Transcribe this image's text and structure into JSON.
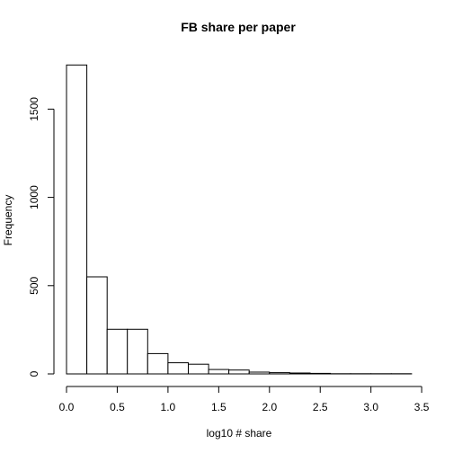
{
  "chart_data": {
    "type": "bar",
    "title": "FB share per paper",
    "xlabel": "log10 # share",
    "ylabel": "Frequency",
    "bin_width": 0.2,
    "bins": [
      {
        "start": 0.0,
        "end": 0.2,
        "count": 1750
      },
      {
        "start": 0.2,
        "end": 0.4,
        "count": 550
      },
      {
        "start": 0.4,
        "end": 0.6,
        "count": 253
      },
      {
        "start": 0.6,
        "end": 0.8,
        "count": 253
      },
      {
        "start": 0.8,
        "end": 1.0,
        "count": 115
      },
      {
        "start": 1.0,
        "end": 1.2,
        "count": 63
      },
      {
        "start": 1.2,
        "end": 1.4,
        "count": 55
      },
      {
        "start": 1.4,
        "end": 1.6,
        "count": 25
      },
      {
        "start": 1.6,
        "end": 1.8,
        "count": 22
      },
      {
        "start": 1.8,
        "end": 2.0,
        "count": 10
      },
      {
        "start": 2.0,
        "end": 2.2,
        "count": 7
      },
      {
        "start": 2.2,
        "end": 2.4,
        "count": 5
      },
      {
        "start": 2.4,
        "end": 2.6,
        "count": 3
      },
      {
        "start": 2.6,
        "end": 2.8,
        "count": 1
      },
      {
        "start": 2.8,
        "end": 3.0,
        "count": 1
      },
      {
        "start": 3.0,
        "end": 3.2,
        "count": 1
      },
      {
        "start": 3.2,
        "end": 3.4,
        "count": 1
      }
    ],
    "xlim": [
      0,
      3.4
    ],
    "ylim": [
      0,
      1750
    ],
    "xticks": [
      "0.0",
      "0.5",
      "1.0",
      "1.5",
      "2.0",
      "2.5",
      "3.0",
      "3.5"
    ],
    "yticks": [
      "0",
      "500",
      "1000",
      "1500"
    ],
    "grid": false,
    "legend": "none"
  }
}
